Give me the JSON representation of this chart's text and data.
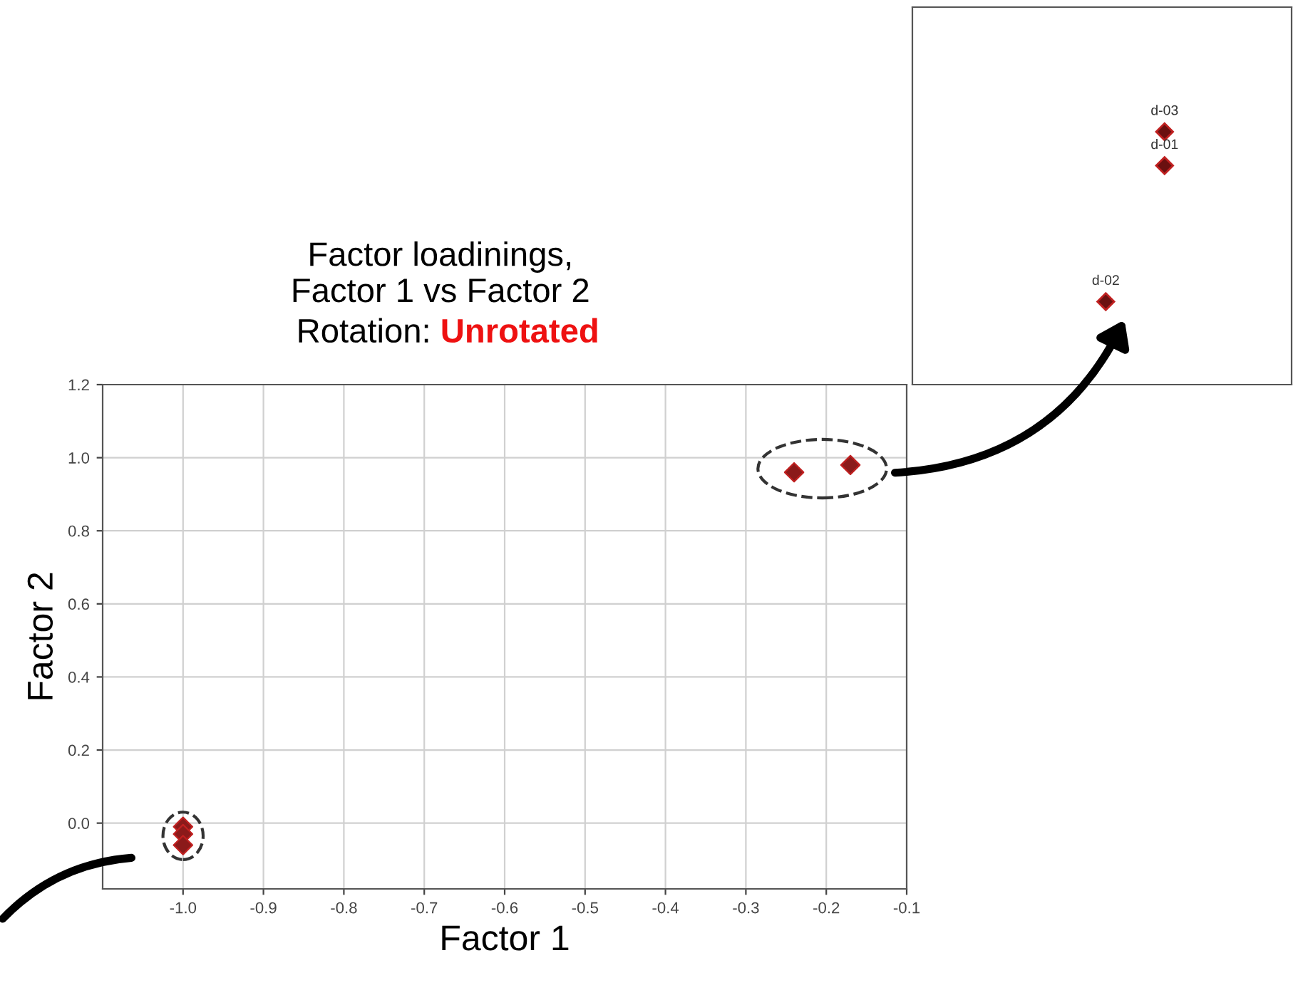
{
  "chart_data": [
    {
      "type": "scatter",
      "title": "Factor loadinings,\nFactor 1 vs Factor 2",
      "subtitle": "Rotation: Unrotated",
      "xlabel": "Factor 1",
      "ylabel": "Factor 2",
      "marker": "diamond",
      "grid": true,
      "series": [
        {
          "color": "#8b1a1a",
          "x": [
            -0.24,
            -0.17,
            -1.0,
            -1.0,
            -1.0
          ],
          "values": [
            0.96,
            0.98,
            -0.01,
            -0.03,
            -0.06
          ]
        }
      ],
      "xlim": [
        -1.1,
        -0.1
      ],
      "ylim": [
        -0.18,
        1.2
      ],
      "xticks": [
        {
          "value": -1.0,
          "label": "-1.0"
        },
        -0.9,
        -0.8,
        -0.7,
        -0.6,
        -0.5,
        -0.4,
        -0.3,
        -0.2,
        -0.1
      ],
      "yticks": [
        {
          "value": 0.0,
          "label": "0.0"
        },
        0.2,
        0.4,
        0.6,
        0.8,
        {
          "value": 1.0,
          "label": "1.0"
        },
        1.2
      ],
      "annotations": [
        "d-03",
        "d-01",
        "d-02"
      ]
    }
  ]
}
